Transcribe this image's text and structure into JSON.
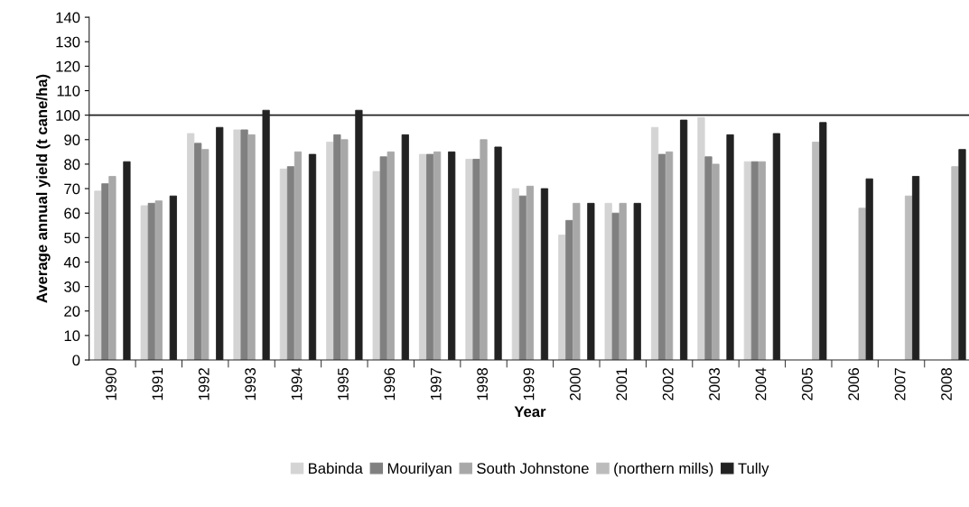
{
  "chart_data": {
    "type": "bar",
    "xlabel": "Year",
    "ylabel": "Average annual yield (t cane/ha)",
    "categories": [
      "1990",
      "1991",
      "1992",
      "1993",
      "1994",
      "1995",
      "1996",
      "1997",
      "1998",
      "1999",
      "2000",
      "2001",
      "2002",
      "2003",
      "2004",
      "2005",
      "2006",
      "2007",
      "2008"
    ],
    "series": [
      {
        "name": "Babinda",
        "color": "#d4d4d4",
        "values": [
          69,
          63,
          92.5,
          94,
          78,
          89,
          77,
          84,
          82,
          70,
          51,
          64,
          95,
          99,
          81,
          null,
          null,
          null,
          null
        ]
      },
      {
        "name": "Mourilyan",
        "color": "#808080",
        "values": [
          72,
          64,
          88.5,
          94,
          79,
          92,
          83,
          84,
          82,
          67,
          57,
          60,
          84,
          83,
          81,
          null,
          null,
          null,
          null
        ]
      },
      {
        "name": "South Johnstone",
        "color": "#a8a8a8",
        "values": [
          75,
          65,
          86,
          92,
          85,
          90,
          85,
          85,
          90,
          71,
          64,
          64,
          85,
          80,
          81,
          null,
          null,
          null,
          null
        ]
      },
      {
        "name": "(northern mills)",
        "color": "#bcbcbc",
        "values": [
          null,
          null,
          null,
          null,
          null,
          null,
          null,
          null,
          null,
          null,
          null,
          null,
          null,
          null,
          null,
          89,
          62,
          67,
          79
        ]
      },
      {
        "name": "Tully",
        "color": "#222222",
        "values": [
          81,
          67,
          95,
          102,
          84,
          102,
          92,
          85,
          87,
          70,
          64,
          64,
          98,
          92,
          92.5,
          97,
          74,
          75,
          86
        ]
      }
    ],
    "ylim": [
      0,
      140
    ],
    "yticks": [
      0,
      10,
      20,
      30,
      40,
      50,
      60,
      70,
      80,
      90,
      100,
      110,
      120,
      130,
      140
    ],
    "ref_lines": [
      {
        "axis": "y",
        "value": 100,
        "color": "#222222"
      }
    ],
    "grid": false,
    "legend": "bottom"
  }
}
